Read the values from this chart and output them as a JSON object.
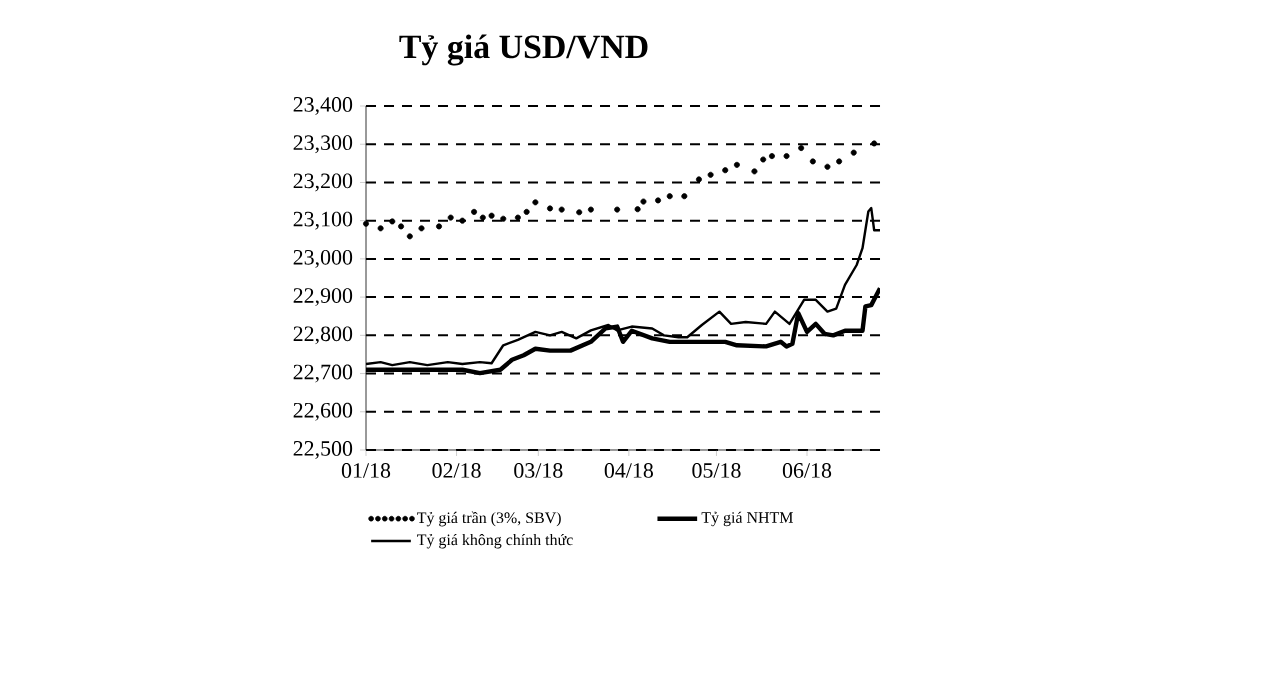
{
  "chart_data": {
    "type": "line",
    "title": "Tỷ giá USD/VND",
    "xlim": [
      "2018-01-01",
      "2018-06-26"
    ],
    "xticks": [
      {
        "value": "2018-01-01",
        "label": "01/18"
      },
      {
        "value": "2018-02-01",
        "label": "02/18"
      },
      {
        "value": "2018-03-01",
        "label": "03/18"
      },
      {
        "value": "2018-04-01",
        "label": "04/18"
      },
      {
        "value": "2018-05-01",
        "label": "05/18"
      },
      {
        "value": "2018-06-01",
        "label": "06/18"
      }
    ],
    "ylim": [
      22500,
      23400
    ],
    "yticks": [
      {
        "value": 22500,
        "label": "22,500"
      },
      {
        "value": 22600,
        "label": "22,600"
      },
      {
        "value": 22700,
        "label": "22,700"
      },
      {
        "value": 22800,
        "label": "22,800"
      },
      {
        "value": 22900,
        "label": "22,900"
      },
      {
        "value": 23000,
        "label": "23,000"
      },
      {
        "value": 23100,
        "label": "23,100"
      },
      {
        "value": 23200,
        "label": "23,200"
      },
      {
        "value": 23300,
        "label": "23,300"
      },
      {
        "value": 23400,
        "label": "23,400"
      }
    ],
    "grid": "y",
    "legend": "bottom",
    "series": [
      {
        "name": "Tỷ giá trần (3%, SBV)",
        "type": "scatter",
        "color": "#000000",
        "x": [
          "2018-01-01",
          "2018-01-06",
          "2018-01-10",
          "2018-01-13",
          "2018-01-16",
          "2018-01-20",
          "2018-01-26",
          "2018-01-30",
          "2018-02-03",
          "2018-02-07",
          "2018-02-10",
          "2018-02-13",
          "2018-02-17",
          "2018-02-22",
          "2018-02-25",
          "2018-02-28",
          "2018-03-05",
          "2018-03-09",
          "2018-03-15",
          "2018-03-19",
          "2018-03-28",
          "2018-04-04",
          "2018-04-06",
          "2018-04-11",
          "2018-04-15",
          "2018-04-20",
          "2018-04-25",
          "2018-04-29",
          "2018-05-04",
          "2018-05-08",
          "2018-05-14",
          "2018-05-17",
          "2018-05-20",
          "2018-05-25",
          "2018-05-30",
          "2018-06-03",
          "2018-06-08",
          "2018-06-12",
          "2018-06-17",
          "2018-06-24"
        ],
        "values": [
          23092,
          23080,
          23098,
          23085,
          23059,
          23080,
          23085,
          23108,
          23100,
          23123,
          23108,
          23113,
          23105,
          23108,
          23123,
          23148,
          23132,
          23129,
          23122,
          23129,
          23129,
          23130,
          23150,
          23153,
          23164,
          23164,
          23208,
          23220,
          23232,
          23246,
          23229,
          23260,
          23269,
          23269,
          23290,
          23255,
          23241,
          23255,
          23278,
          23302
        ]
      },
      {
        "name": "Tỷ giá NHTM",
        "color": "#000000",
        "x": [
          "2018-01-01",
          "2018-01-10",
          "2018-01-22",
          "2018-02-03",
          "2018-02-09",
          "2018-02-16",
          "2018-02-20",
          "2018-02-24",
          "2018-02-28",
          "2018-03-05",
          "2018-03-12",
          "2018-03-19",
          "2018-03-24",
          "2018-03-28",
          "2018-03-30",
          "2018-04-02",
          "2018-04-09",
          "2018-04-15",
          "2018-05-04",
          "2018-05-08",
          "2018-05-18",
          "2018-05-23",
          "2018-05-25",
          "2018-05-27",
          "2018-05-29",
          "2018-06-01",
          "2018-06-04",
          "2018-06-07",
          "2018-06-10",
          "2018-06-14",
          "2018-06-20",
          "2018-06-21",
          "2018-06-23",
          "2018-06-26"
        ],
        "values": [
          22710,
          22710,
          22710,
          22710,
          22701,
          22710,
          22736,
          22748,
          22765,
          22760,
          22760,
          22783,
          22818,
          22823,
          22783,
          22812,
          22792,
          22783,
          22783,
          22774,
          22771,
          22783,
          22771,
          22778,
          22858,
          22809,
          22830,
          22804,
          22800,
          22812,
          22812,
          22876,
          22879,
          22923
        ]
      },
      {
        "name": "Tỷ giá không chính thức",
        "color": "#000000",
        "x": [
          "2018-01-01",
          "2018-01-06",
          "2018-01-10",
          "2018-01-16",
          "2018-01-22",
          "2018-01-29",
          "2018-02-03",
          "2018-02-09",
          "2018-02-13",
          "2018-02-17",
          "2018-02-22",
          "2018-02-28",
          "2018-03-05",
          "2018-03-09",
          "2018-03-14",
          "2018-03-19",
          "2018-03-25",
          "2018-03-28",
          "2018-04-02",
          "2018-04-09",
          "2018-04-13",
          "2018-04-18",
          "2018-04-21",
          "2018-04-26",
          "2018-05-02",
          "2018-05-06",
          "2018-05-11",
          "2018-05-18",
          "2018-05-21",
          "2018-05-26",
          "2018-05-31",
          "2018-06-04",
          "2018-06-08",
          "2018-06-11",
          "2018-06-14",
          "2018-06-18",
          "2018-06-20",
          "2018-06-22",
          "2018-06-23",
          "2018-06-24",
          "2018-06-26"
        ],
        "values": [
          22725,
          22730,
          22722,
          22730,
          22722,
          22730,
          22725,
          22730,
          22727,
          22774,
          22788,
          22809,
          22800,
          22809,
          22792,
          22813,
          22827,
          22813,
          22823,
          22818,
          22800,
          22795,
          22795,
          22827,
          22862,
          22830,
          22835,
          22830,
          22862,
          22830,
          22893,
          22893,
          22862,
          22870,
          22932,
          22984,
          23028,
          23124,
          23133,
          23075,
          23075
        ]
      }
    ]
  }
}
